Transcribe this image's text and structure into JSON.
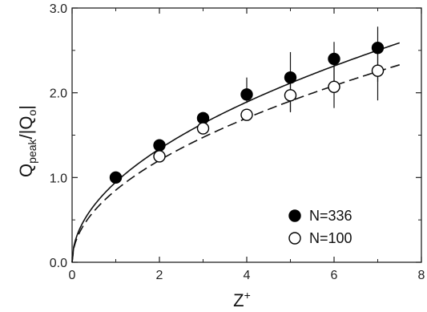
{
  "chart_data": {
    "type": "scatter",
    "xlabel": "Z",
    "xlabel_sup": "+",
    "ylabel_main": "Q",
    "ylabel_sub1": "peak",
    "ylabel_mid": "/|Q",
    "ylabel_sub2": "o",
    "ylabel_end": "|",
    "xlim": [
      0,
      8
    ],
    "ylim": [
      0.0,
      3.0
    ],
    "x_ticks": [
      "0",
      "2",
      "4",
      "6",
      "8"
    ],
    "y_ticks": [
      "0.0",
      "1.0",
      "2.0",
      "3.0"
    ],
    "grid": false,
    "legend_position": "bottom-right",
    "series": [
      {
        "name": "N=336",
        "marker": "filled-circle",
        "x": [
          1,
          2,
          3,
          4,
          5,
          6,
          7
        ],
        "y": [
          1.0,
          1.38,
          1.7,
          1.98,
          2.18,
          2.4,
          2.53
        ],
        "err_low": [
          0.0,
          0.0,
          0.0,
          0.1,
          0.4,
          0.35,
          0.4
        ],
        "err_high": [
          0.0,
          0.0,
          0.0,
          0.2,
          0.3,
          0.2,
          0.25
        ],
        "fit_line": {
          "style": "solid",
          "coef": 0.9454,
          "exponent": 0.5,
          "x_max": 7.5
        }
      },
      {
        "name": "N=100",
        "marker": "open-circle",
        "x": [
          2,
          3,
          4,
          5,
          6,
          7
        ],
        "y": [
          1.25,
          1.58,
          1.74,
          1.97,
          2.07,
          2.26
        ],
        "err_low": [
          0.0,
          0.0,
          0.05,
          0.2,
          0.25,
          0.35
        ],
        "err_high": [
          0.0,
          0.0,
          0.05,
          0.2,
          0.25,
          0.25
        ],
        "fit_line": {
          "style": "dashed",
          "coef": 0.8507,
          "exponent": 0.5,
          "x_max": 7.5
        }
      }
    ]
  }
}
